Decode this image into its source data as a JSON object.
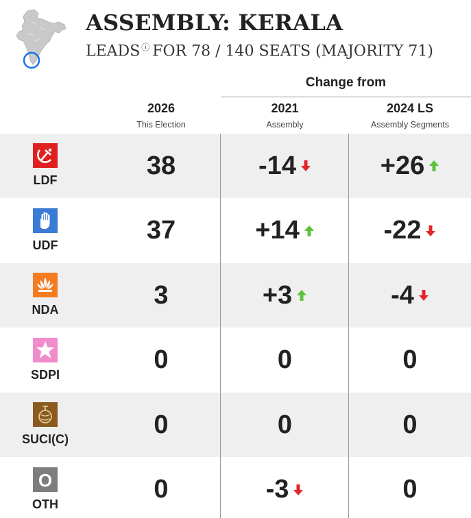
{
  "header": {
    "title": "ASSEMBLY: KERALA",
    "subtitle_prefix": "LEADS",
    "info_glyph": "ⓘ",
    "subtitle_rest": "FOR 78 / 140 SEATS (MAJORITY 71)"
  },
  "map_icon": "india-map-kerala-highlight-icon",
  "table": {
    "change_from": "Change from",
    "columns": [
      {
        "year": "2026",
        "sub": "This Election"
      },
      {
        "year": "2021",
        "sub": "Assembly"
      },
      {
        "year": "2024 LS",
        "sub": "Assembly Segments"
      }
    ],
    "rows": [
      {
        "party": "LDF",
        "icon": "hammer-sickle-icon",
        "color": "#e02020",
        "now": "38",
        "vs2021": "-14",
        "dir2021": "down",
        "vs2024": "+26",
        "dir2024": "up"
      },
      {
        "party": "UDF",
        "icon": "hand-icon",
        "color": "#3a7bd5",
        "now": "37",
        "vs2021": "+14",
        "dir2021": "up",
        "vs2024": "-22",
        "dir2024": "down"
      },
      {
        "party": "NDA",
        "icon": "lotus-icon",
        "color": "#f47b20",
        "now": "3",
        "vs2021": "+3",
        "dir2021": "up",
        "vs2024": "-4",
        "dir2024": "down"
      },
      {
        "party": "SDPI",
        "icon": "star-icon",
        "color": "#f08ccb",
        "now": "0",
        "vs2021": "0",
        "dir2021": "",
        "vs2024": "0",
        "dir2024": ""
      },
      {
        "party": "SUCI(C)",
        "icon": "globe-icon",
        "color": "#8a5a1e",
        "now": "0",
        "vs2021": "0",
        "dir2021": "",
        "vs2024": "0",
        "dir2024": ""
      },
      {
        "party": "OTH",
        "icon": "o-letter-icon",
        "color": "#7d7d7d",
        "symbol_text": "O",
        "now": "0",
        "vs2021": "-3",
        "dir2021": "down",
        "vs2024": "0",
        "dir2024": ""
      }
    ]
  },
  "colors": {
    "up": "#5cc23a",
    "down": "#e3262a",
    "map_highlight": "#1a73e8"
  }
}
